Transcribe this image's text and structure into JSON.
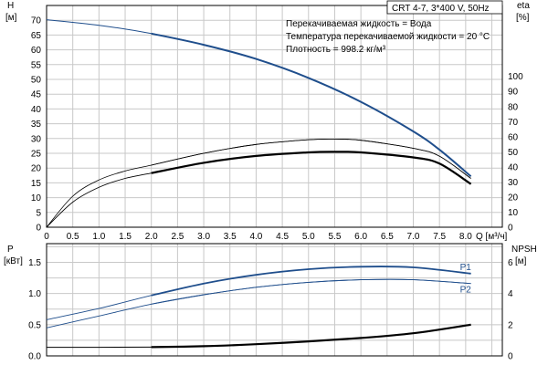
{
  "chart_data": [
    {
      "type": "line",
      "title": "CRT 4-7, 3*400 V, 50Hz",
      "info": [
        "Перекачиваемая жидкость = Вода",
        "Температура перекачиваемой жидкости = 20 °C",
        "Плотность = 998.2 кг/м³"
      ],
      "xlabel": "Q [м³/ч]",
      "xlim": [
        0,
        8.7
      ],
      "xticks": [
        "0",
        "0.5",
        "1.0",
        "1.5",
        "2.0",
        "2.5",
        "3.0",
        "3.5",
        "4.0",
        "4.5",
        "5.0",
        "5.5",
        "6.0",
        "6.5",
        "7.0",
        "7.5",
        "8.0"
      ],
      "y_left": {
        "label": [
          "H",
          "[м]"
        ],
        "lim": [
          0,
          75
        ],
        "ticks": [
          0,
          5,
          10,
          15,
          20,
          25,
          30,
          35,
          40,
          45,
          50,
          55,
          60,
          65,
          70
        ]
      },
      "y_right": {
        "label": [
          "eta",
          "[%]"
        ],
        "lim": [
          0,
          147
        ],
        "ticks": [
          0,
          10,
          20,
          30,
          40,
          50,
          60,
          70,
          80,
          90,
          100
        ]
      },
      "grid": true,
      "series": [
        {
          "name": "",
          "axis": "left",
          "color": "#1f4e8c",
          "x": [
            0,
            1,
            2,
            3,
            4,
            5,
            6,
            7,
            7.5,
            8.1
          ],
          "y": [
            70.2,
            68.3,
            65.5,
            61.7,
            56.9,
            50.5,
            42.4,
            32.4,
            26.2,
            17.2
          ]
        },
        {
          "name": "",
          "axis": "left",
          "color": "#000000",
          "x": [
            0,
            0.5,
            1,
            1.5,
            2,
            3,
            4,
            5,
            5.5,
            6,
            7,
            7.5,
            8.1
          ],
          "y": [
            0,
            10.5,
            16,
            19,
            21,
            25,
            28,
            29.6,
            29.8,
            29.4,
            26.7,
            24,
            16.5
          ]
        },
        {
          "name": "",
          "axis": "left",
          "color": "#000000",
          "x": [
            0,
            0.5,
            1,
            1.5,
            2,
            3,
            4,
            5,
            5.5,
            6,
            7,
            7.5,
            8.1
          ],
          "y": [
            0,
            8.5,
            13.5,
            16.5,
            18.3,
            21.8,
            24.1,
            25.3,
            25.5,
            25.3,
            23.6,
            21.5,
            14.6
          ]
        }
      ]
    },
    {
      "type": "line",
      "xlim": [
        0,
        8.7
      ],
      "y_left": {
        "label": [
          "P",
          "[кВт]"
        ],
        "lim": [
          0,
          1.8
        ],
        "ticks": [
          "0.0",
          "0.5",
          "1.0",
          "1.5"
        ]
      },
      "y_right": {
        "label": [
          "NPSH",
          "[м]"
        ],
        "lim": [
          0,
          7.2
        ],
        "ticks": [
          0,
          2,
          4,
          6
        ]
      },
      "grid": true,
      "series": [
        {
          "name": "P1",
          "axis": "left",
          "color": "#1f4e8c",
          "x": [
            0,
            1,
            2,
            3,
            4,
            5,
            6,
            7,
            8.1
          ],
          "y": [
            0.58,
            0.76,
            0.97,
            1.16,
            1.3,
            1.39,
            1.43,
            1.42,
            1.32
          ]
        },
        {
          "name": "P2",
          "axis": "left",
          "color": "#1f4e8c",
          "x": [
            0,
            1,
            2,
            3,
            4,
            5,
            6,
            7,
            8.1
          ],
          "y": [
            0.45,
            0.64,
            0.83,
            0.98,
            1.1,
            1.18,
            1.22,
            1.22,
            1.16
          ]
        },
        {
          "name": "",
          "axis": "right",
          "color": "#000000",
          "x": [
            0,
            1,
            2,
            3,
            4,
            5,
            6,
            7,
            8.1
          ],
          "y": [
            0.55,
            0.55,
            0.56,
            0.62,
            0.75,
            0.93,
            1.15,
            1.45,
            2.0
          ]
        }
      ]
    }
  ]
}
